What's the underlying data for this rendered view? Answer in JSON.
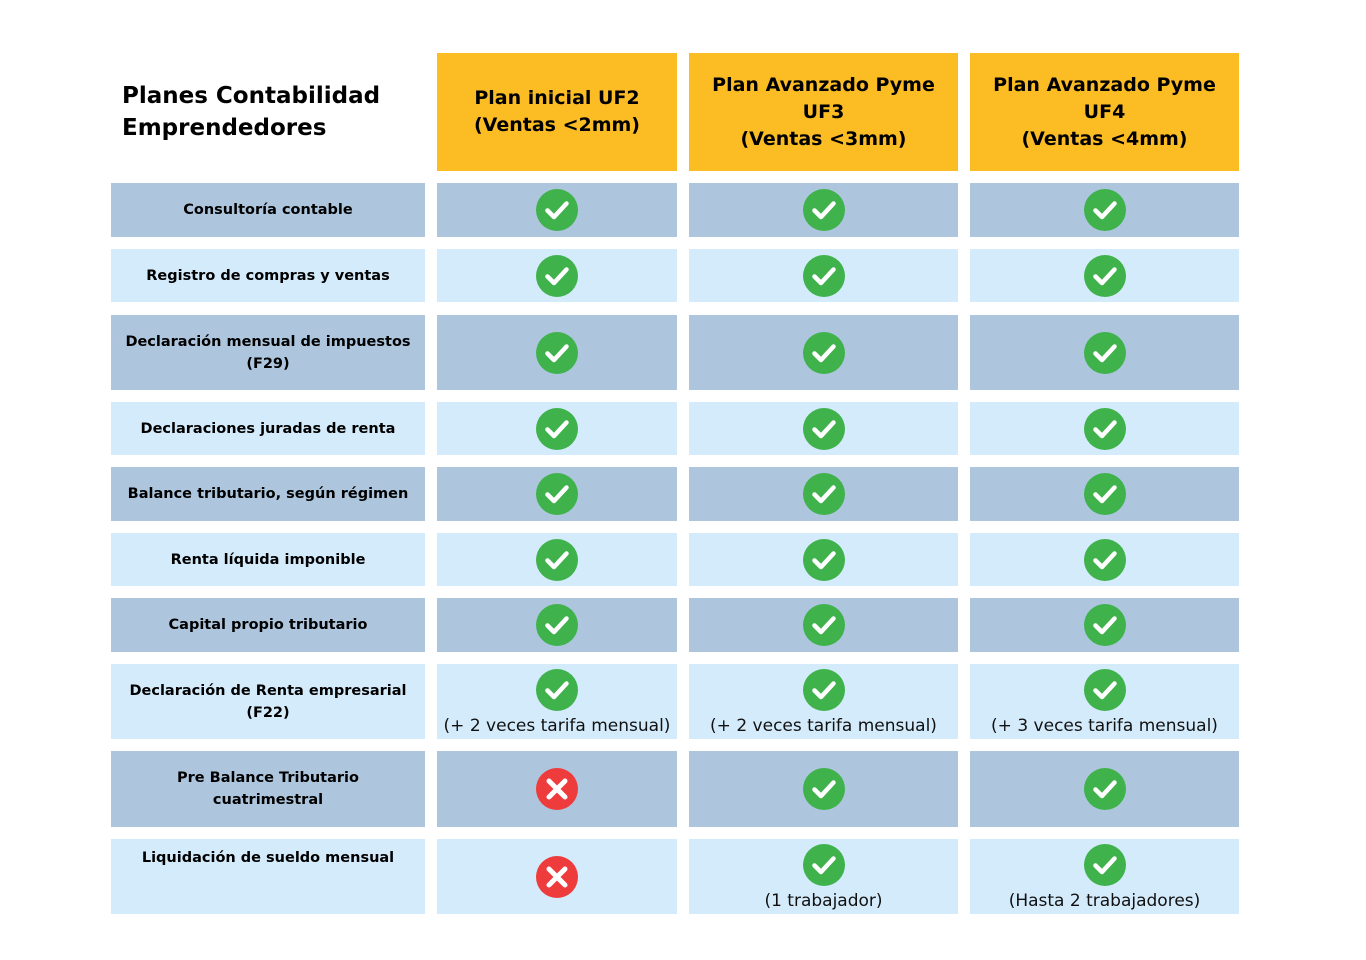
{
  "title": {
    "line1": "Planes Contabilidad",
    "line2": "Emprendedores"
  },
  "plans": [
    {
      "lines": [
        "Plan inicial UF2",
        "(Ventas <2mm)"
      ]
    },
    {
      "lines": [
        "Plan Avanzado Pyme",
        "UF3",
        "(Ventas <3mm)"
      ]
    },
    {
      "lines": [
        "Plan Avanzado Pyme",
        "UF4",
        "(Ventas <4mm)"
      ]
    }
  ],
  "colors": {
    "header": "#fbbc24",
    "row_dark": "#adc6de",
    "row_light": "#d4ebfb",
    "check": "#3fb24c",
    "cross": "#ee3b3b"
  },
  "rows": [
    {
      "label": [
        "Consultoría contable"
      ],
      "cells": [
        {
          "mark": "check-icon"
        },
        {
          "mark": "check-icon"
        },
        {
          "mark": "check-icon"
        }
      ]
    },
    {
      "label": [
        "Registro de compras y ventas"
      ],
      "cells": [
        {
          "mark": "check-icon"
        },
        {
          "mark": "check-icon"
        },
        {
          "mark": "check-icon"
        }
      ]
    },
    {
      "label": [
        "Declaración mensual de impuestos",
        "(F29)"
      ],
      "cells": [
        {
          "mark": "check-icon"
        },
        {
          "mark": "check-icon"
        },
        {
          "mark": "check-icon"
        }
      ]
    },
    {
      "label": [
        "Declaraciones juradas de renta"
      ],
      "cells": [
        {
          "mark": "check-icon"
        },
        {
          "mark": "check-icon"
        },
        {
          "mark": "check-icon"
        }
      ]
    },
    {
      "label": [
        "Balance tributario, según régimen"
      ],
      "cells": [
        {
          "mark": "check-icon"
        },
        {
          "mark": "check-icon"
        },
        {
          "mark": "check-icon"
        }
      ]
    },
    {
      "label": [
        "Renta líquida imponible"
      ],
      "cells": [
        {
          "mark": "check-icon"
        },
        {
          "mark": "check-icon"
        },
        {
          "mark": "check-icon"
        }
      ]
    },
    {
      "label": [
        "Capital propio tributario"
      ],
      "cells": [
        {
          "mark": "check-icon"
        },
        {
          "mark": "check-icon"
        },
        {
          "mark": "check-icon"
        }
      ]
    },
    {
      "label": [
        "Declaración de Renta empresarial",
        "(F22)"
      ],
      "cells": [
        {
          "mark": "check-icon",
          "note": "(+ 2 veces tarifa mensual)"
        },
        {
          "mark": "check-icon",
          "note": "(+ 2 veces tarifa mensual)"
        },
        {
          "mark": "check-icon",
          "note": "(+ 3 veces tarifa mensual)"
        }
      ]
    },
    {
      "label": [
        "Pre Balance Tributario",
        "cuatrimestral"
      ],
      "cells": [
        {
          "mark": "cross-icon"
        },
        {
          "mark": "check-icon"
        },
        {
          "mark": "check-icon"
        }
      ]
    },
    {
      "label": [
        "Liquidación de sueldo mensual"
      ],
      "cells": [
        {
          "mark": "cross-icon"
        },
        {
          "mark": "check-icon",
          "note": "(1 trabajador)"
        },
        {
          "mark": "check-icon",
          "note": "(Hasta 2 trabajadores)"
        }
      ]
    }
  ]
}
